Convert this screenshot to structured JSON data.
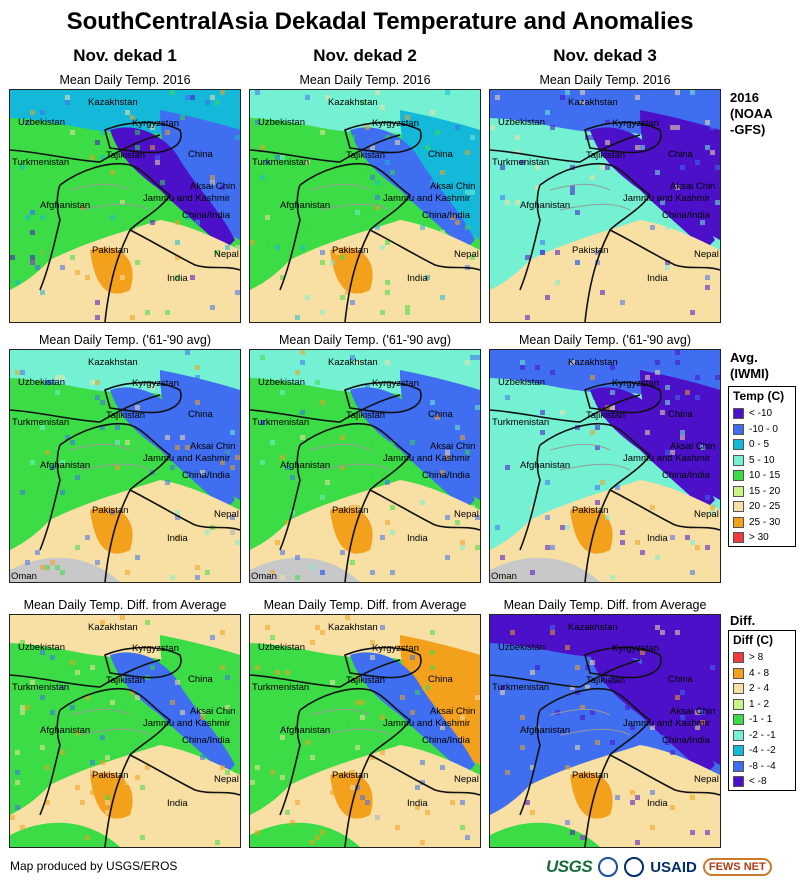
{
  "title": "SouthCentralAsia Dekadal Temperature and Anomalies",
  "columns": [
    "Nov. dekad 1",
    "Nov. dekad 2",
    "Nov. dekad 3"
  ],
  "row_subtitles": {
    "current": "Mean Daily Temp. 2016",
    "average": "Mean Daily Temp. ('61-'90 avg)",
    "diff": "Mean Daily Temp. Diff. from Average"
  },
  "row_side_labels": {
    "current": [
      "2016",
      "(NOAA",
      "-GFS)"
    ],
    "average": [
      "Avg.",
      "(IWMI)"
    ],
    "diff": [
      "Diff."
    ]
  },
  "map_labels": {
    "kazakhstan": "Kazakhstan",
    "uzbekistan": "Uzbekistan",
    "kyrgyzstan": "Kyrgyzstan",
    "turkmenistan": "Turkmenistan",
    "tajikistan": "Tajikistan",
    "china": "China",
    "aksai_chin": "Aksai Chin",
    "jammu_kashmir": "Jammu and Kashmir",
    "afghanistan": "Afghanistan",
    "china_india": "China/India",
    "pakistan": "Pakistan",
    "nepal": "Nepal",
    "india": "India",
    "oman": "Oman"
  },
  "temp_legend": {
    "title": "Temp (C)",
    "items": [
      {
        "label": "< -10",
        "color": "#4b10c8"
      },
      {
        "label": "-10 - 0",
        "color": "#3f6ef0"
      },
      {
        "label": "0 - 5",
        "color": "#14b9d9"
      },
      {
        "label": "5 - 10",
        "color": "#74f0d2"
      },
      {
        "label": "10 - 15",
        "color": "#3bdc46"
      },
      {
        "label": "15 - 20",
        "color": "#c8f58a"
      },
      {
        "label": "20 - 25",
        "color": "#f8e0a4"
      },
      {
        "label": "25 - 30",
        "color": "#f3a11d"
      },
      {
        "label": "> 30",
        "color": "#f03c3c"
      }
    ]
  },
  "diff_legend": {
    "title": "Diff (C)",
    "items": [
      {
        "label": "> 8",
        "color": "#f03c3c"
      },
      {
        "label": "4 - 8",
        "color": "#f3a11d"
      },
      {
        "label": "2 - 4",
        "color": "#f8e0a4"
      },
      {
        "label": "1 - 2",
        "color": "#c8f58a"
      },
      {
        "label": "-1 - 1",
        "color": "#3bdc46"
      },
      {
        "label": "-2 - -1",
        "color": "#74f0d2"
      },
      {
        "label": "-4 - -2",
        "color": "#14b9d9"
      },
      {
        "label": "-8 - -4",
        "color": "#3f6ef0"
      },
      {
        "label": "< -8",
        "color": "#4b10c8"
      }
    ]
  },
  "footer": "Map produced by USGS/EROS",
  "logos": {
    "usgs": "USGS",
    "usaid": "USAID",
    "fews": "FEWS NET"
  }
}
